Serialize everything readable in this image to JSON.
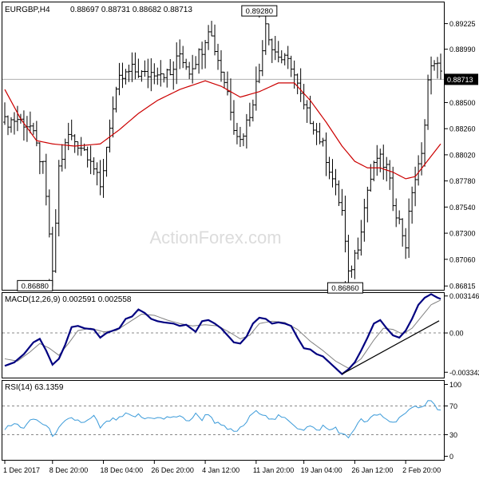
{
  "header": {
    "symbol": "EURGBP,H4",
    "ohlc": "0.88697 0.88731 0.88682 0.88713"
  },
  "watermark": "ActionForex.com",
  "colors": {
    "background": "#ffffff",
    "grid": "#cfcfcf",
    "bars": "#000000",
    "ma_line": "#cc0000",
    "macd_line": "#000080",
    "signal_line": "#808080",
    "rsi_line": "#3a9ad9",
    "watermark": "#dcdcdc"
  },
  "chart_data": [
    {
      "type": "ohlc",
      "pane": "price",
      "title": "EURGBP,H4",
      "ylim": [
        0.8678,
        0.8942
      ],
      "y_ticks": [
        "0.89225",
        "0.88990",
        "0.88500",
        "0.88260",
        "0.88020",
        "0.87780",
        "0.87540",
        "0.87300",
        "0.87060",
        "0.86815"
      ],
      "current_price": "0.88713",
      "annotations": [
        {
          "label": "0.89280",
          "value": 0.8928,
          "at": "11 Jan"
        },
        {
          "label": "0.86880",
          "value": 0.8688,
          "at": "7 Dec"
        },
        {
          "label": "0.86860",
          "value": 0.8686,
          "at": "23 Jan"
        }
      ],
      "close_keypoints": [
        [
          0,
          0.8832
        ],
        [
          4,
          0.8835
        ],
        [
          8,
          0.8828
        ],
        [
          12,
          0.879
        ],
        [
          14,
          0.873
        ],
        [
          15,
          0.869
        ],
        [
          17,
          0.879
        ],
        [
          20,
          0.882
        ],
        [
          24,
          0.881
        ],
        [
          27,
          0.88
        ],
        [
          30,
          0.877
        ],
        [
          33,
          0.883
        ],
        [
          36,
          0.887
        ],
        [
          40,
          0.888
        ],
        [
          44,
          0.8875
        ],
        [
          48,
          0.888
        ],
        [
          52,
          0.8875
        ],
        [
          55,
          0.8895
        ],
        [
          58,
          0.888
        ],
        [
          62,
          0.89
        ],
        [
          64,
          0.892
        ],
        [
          67,
          0.889
        ],
        [
          70,
          0.886
        ],
        [
          72,
          0.883
        ],
        [
          74,
          0.8815
        ],
        [
          77,
          0.884
        ],
        [
          80,
          0.888
        ],
        [
          82,
          0.8925
        ],
        [
          84,
          0.89
        ],
        [
          87,
          0.889
        ],
        [
          90,
          0.8885
        ],
        [
          92,
          0.8865
        ],
        [
          94,
          0.8845
        ],
        [
          97,
          0.883
        ],
        [
          100,
          0.881
        ],
        [
          103,
          0.878
        ],
        [
          106,
          0.875
        ],
        [
          108,
          0.869
        ],
        [
          109,
          0.87
        ],
        [
          111,
          0.872
        ],
        [
          114,
          0.877
        ],
        [
          117,
          0.88
        ],
        [
          120,
          0.879
        ],
        [
          122,
          0.876
        ],
        [
          124,
          0.874
        ],
        [
          126,
          0.872
        ],
        [
          128,
          0.877
        ],
        [
          131,
          0.88
        ],
        [
          133,
          0.887
        ],
        [
          135,
          0.889
        ],
        [
          137,
          0.8875
        ]
      ],
      "ma_keypoints": [
        [
          0,
          0.8862
        ],
        [
          5,
          0.8835
        ],
        [
          10,
          0.8815
        ],
        [
          15,
          0.8812
        ],
        [
          22,
          0.881
        ],
        [
          30,
          0.8812
        ],
        [
          36,
          0.8825
        ],
        [
          42,
          0.884
        ],
        [
          48,
          0.8852
        ],
        [
          55,
          0.8862
        ],
        [
          63,
          0.887
        ],
        [
          68,
          0.8865
        ],
        [
          74,
          0.8855
        ],
        [
          80,
          0.886
        ],
        [
          86,
          0.8868
        ],
        [
          91,
          0.8868
        ],
        [
          96,
          0.8852
        ],
        [
          101,
          0.8832
        ],
        [
          106,
          0.881
        ],
        [
          110,
          0.8796
        ],
        [
          114,
          0.879
        ],
        [
          118,
          0.879
        ],
        [
          122,
          0.8786
        ],
        [
          126,
          0.878
        ],
        [
          129,
          0.8782
        ],
        [
          133,
          0.8797
        ],
        [
          137,
          0.8812
        ]
      ],
      "bar_count": 138
    },
    {
      "type": "line",
      "pane": "macd",
      "title": "MACD(12,26,9) 0.002591 0.002558",
      "ylim": [
        -0.0038,
        0.0034
      ],
      "y_ticks": [
        "0.003146",
        "0.00",
        "-0.003342"
      ],
      "series": [
        {
          "name": "MACD",
          "keypoints": [
            [
              0,
              -0.0028
            ],
            [
              3,
              -0.0025
            ],
            [
              6,
              -0.0018
            ],
            [
              9,
              -0.0008
            ],
            [
              11,
              -0.0005
            ],
            [
              13,
              -0.0015
            ],
            [
              15,
              -0.0027
            ],
            [
              17,
              -0.0022
            ],
            [
              19,
              -0.001
            ],
            [
              21,
              0.0005
            ],
            [
              23,
              0.0006
            ],
            [
              25,
              0.0004
            ],
            [
              28,
              0.0003
            ],
            [
              30,
              -0.0004
            ],
            [
              32,
              0.0
            ],
            [
              34,
              0.0002
            ],
            [
              36,
              0.0004
            ],
            [
              38,
              0.0012
            ],
            [
              40,
              0.0014
            ],
            [
              42,
              0.002
            ],
            [
              44,
              0.0017
            ],
            [
              46,
              0.0012
            ],
            [
              48,
              0.001
            ],
            [
              50,
              0.0009
            ],
            [
              53,
              0.0008
            ],
            [
              55,
              0.0006
            ],
            [
              57,
              0.0007
            ],
            [
              60,
              0.0001
            ],
            [
              62,
              0.001
            ],
            [
              64,
              0.0011
            ],
            [
              66,
              0.0008
            ],
            [
              68,
              0.0004
            ],
            [
              70,
              -0.0002
            ],
            [
              72,
              -0.0008
            ],
            [
              74,
              -0.0009
            ],
            [
              76,
              -0.0003
            ],
            [
              78,
              0.0008
            ],
            [
              80,
              0.0013
            ],
            [
              82,
              0.0012
            ],
            [
              84,
              0.0008
            ],
            [
              86,
              0.0009
            ],
            [
              88,
              0.0008
            ],
            [
              90,
              0.0006
            ],
            [
              92,
              -0.0004
            ],
            [
              94,
              -0.0013
            ],
            [
              96,
              -0.0014
            ],
            [
              98,
              -0.0018
            ],
            [
              100,
              -0.002
            ],
            [
              102,
              -0.0025
            ],
            [
              104,
              -0.003
            ],
            [
              106,
              -0.0035
            ],
            [
              108,
              -0.0031
            ],
            [
              110,
              -0.0025
            ],
            [
              112,
              -0.0015
            ],
            [
              114,
              -0.0004
            ],
            [
              116,
              0.0008
            ],
            [
              118,
              0.0011
            ],
            [
              120,
              0.0004
            ],
            [
              122,
              -0.0002
            ],
            [
              124,
              -0.0004
            ],
            [
              126,
              0.0002
            ],
            [
              128,
              0.0012
            ],
            [
              130,
              0.0024
            ],
            [
              132,
              0.003
            ],
            [
              134,
              0.0033
            ],
            [
              136,
              0.003
            ],
            [
              137,
              0.0029
            ]
          ]
        },
        {
          "name": "Signal",
          "keypoints": [
            [
              0,
              -0.0022
            ],
            [
              4,
              -0.0024
            ],
            [
              8,
              -0.0016
            ],
            [
              11,
              -0.0009
            ],
            [
              14,
              -0.0013
            ],
            [
              17,
              -0.0019
            ],
            [
              20,
              -0.0009
            ],
            [
              23,
              0.0002
            ],
            [
              27,
              0.0004
            ],
            [
              31,
              0.0001
            ],
            [
              35,
              0.0002
            ],
            [
              39,
              0.0009
            ],
            [
              43,
              0.0016
            ],
            [
              47,
              0.0015
            ],
            [
              51,
              0.0011
            ],
            [
              55,
              0.0008
            ],
            [
              59,
              0.0006
            ],
            [
              63,
              0.0007
            ],
            [
              67,
              0.0006
            ],
            [
              71,
              0.0
            ],
            [
              74,
              -0.0005
            ],
            [
              77,
              -0.0002
            ],
            [
              80,
              0.0008
            ],
            [
              84,
              0.001
            ],
            [
              88,
              0.0009
            ],
            [
              92,
              0.0003
            ],
            [
              96,
              -0.0007
            ],
            [
              100,
              -0.0015
            ],
            [
              104,
              -0.0024
            ],
            [
              108,
              -0.003
            ],
            [
              112,
              -0.0022
            ],
            [
              116,
              -0.0006
            ],
            [
              119,
              0.0004
            ],
            [
              122,
              0.0003
            ],
            [
              125,
              -0.0001
            ],
            [
              128,
              0.0004
            ],
            [
              131,
              0.0014
            ],
            [
              134,
              0.0024
            ],
            [
              137,
              0.0028
            ]
          ]
        }
      ],
      "trendline": [
        [
          106,
          -0.0035
        ],
        [
          134,
          0.0009
        ]
      ]
    },
    {
      "type": "line",
      "pane": "rsi",
      "title": "RSI(14) 63.1359",
      "ylim": [
        0,
        100
      ],
      "y_ticks": [
        "100",
        "70",
        "30",
        "0"
      ],
      "levels": [
        70,
        30
      ],
      "series": [
        {
          "name": "RSI(14)",
          "keypoints": [
            [
              0,
              38
            ],
            [
              3,
              45
            ],
            [
              6,
              40
            ],
            [
              9,
              52
            ],
            [
              11,
              48
            ],
            [
              13,
              42
            ],
            [
              15,
              30
            ],
            [
              17,
              38
            ],
            [
              19,
              48
            ],
            [
              21,
              52
            ],
            [
              23,
              50
            ],
            [
              25,
              46
            ],
            [
              28,
              55
            ],
            [
              30,
              40
            ],
            [
              33,
              50
            ],
            [
              36,
              52
            ],
            [
              38,
              58
            ],
            [
              40,
              55
            ],
            [
              42,
              57
            ],
            [
              44,
              52
            ],
            [
              46,
              55
            ],
            [
              48,
              53
            ],
            [
              50,
              52
            ],
            [
              53,
              56
            ],
            [
              55,
              54
            ],
            [
              58,
              50
            ],
            [
              60,
              58
            ],
            [
              62,
              52
            ],
            [
              64,
              60
            ],
            [
              66,
              48
            ],
            [
              68,
              42
            ],
            [
              70,
              38
            ],
            [
              72,
              34
            ],
            [
              74,
              38
            ],
            [
              76,
              48
            ],
            [
              78,
              60
            ],
            [
              80,
              62
            ],
            [
              82,
              58
            ],
            [
              84,
              50
            ],
            [
              86,
              55
            ],
            [
              88,
              52
            ],
            [
              90,
              48
            ],
            [
              92,
              40
            ],
            [
              94,
              38
            ],
            [
              96,
              42
            ],
            [
              98,
              35
            ],
            [
              100,
              42
            ],
            [
              102,
              36
            ],
            [
              104,
              40
            ],
            [
              106,
              30
            ],
            [
              108,
              26
            ],
            [
              110,
              40
            ],
            [
              112,
              50
            ],
            [
              114,
              48
            ],
            [
              116,
              56
            ],
            [
              118,
              58
            ],
            [
              120,
              52
            ],
            [
              122,
              46
            ],
            [
              124,
              55
            ],
            [
              126,
              58
            ],
            [
              128,
              66
            ],
            [
              130,
              70
            ],
            [
              132,
              72
            ],
            [
              134,
              80
            ],
            [
              136,
              64
            ],
            [
              137,
              63
            ]
          ]
        }
      ]
    }
  ],
  "x_axis": {
    "labels": [
      "1 Dec 2017",
      "8 Dec 20:00",
      "18 Dec 04:00",
      "26 Dec 20:00",
      "4 Jan 12:00",
      "11 Jan 20:00",
      "19 Jan 04:00",
      "26 Jan 12:00",
      "2 Feb 20:00"
    ],
    "label_bar_index": [
      0,
      15,
      31,
      47,
      63,
      79,
      94,
      110,
      126
    ]
  }
}
